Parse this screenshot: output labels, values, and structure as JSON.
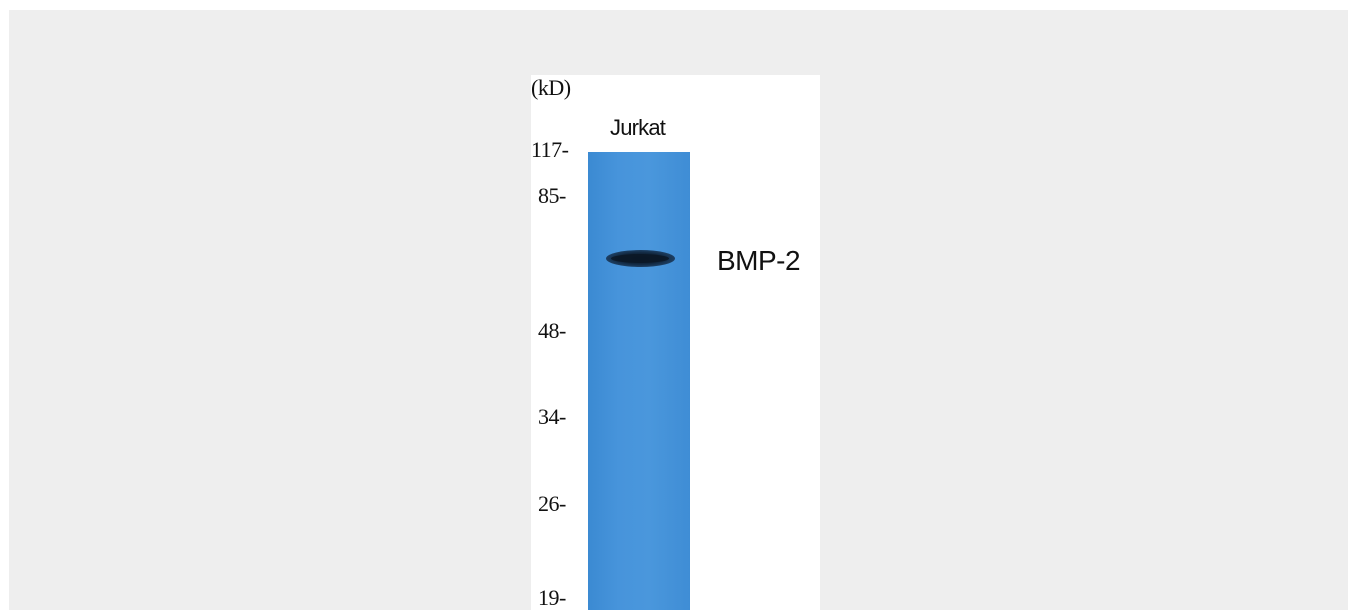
{
  "unit_label": "(kD)",
  "lane_label": "Jurkat",
  "target_label": "BMP-2",
  "markers": [
    "117-",
    "85-",
    "48-",
    "34-",
    "26-",
    "19-"
  ],
  "colors": {
    "background": "#eeeeee",
    "membrane": "#4794db",
    "band": "#0b1624"
  }
}
